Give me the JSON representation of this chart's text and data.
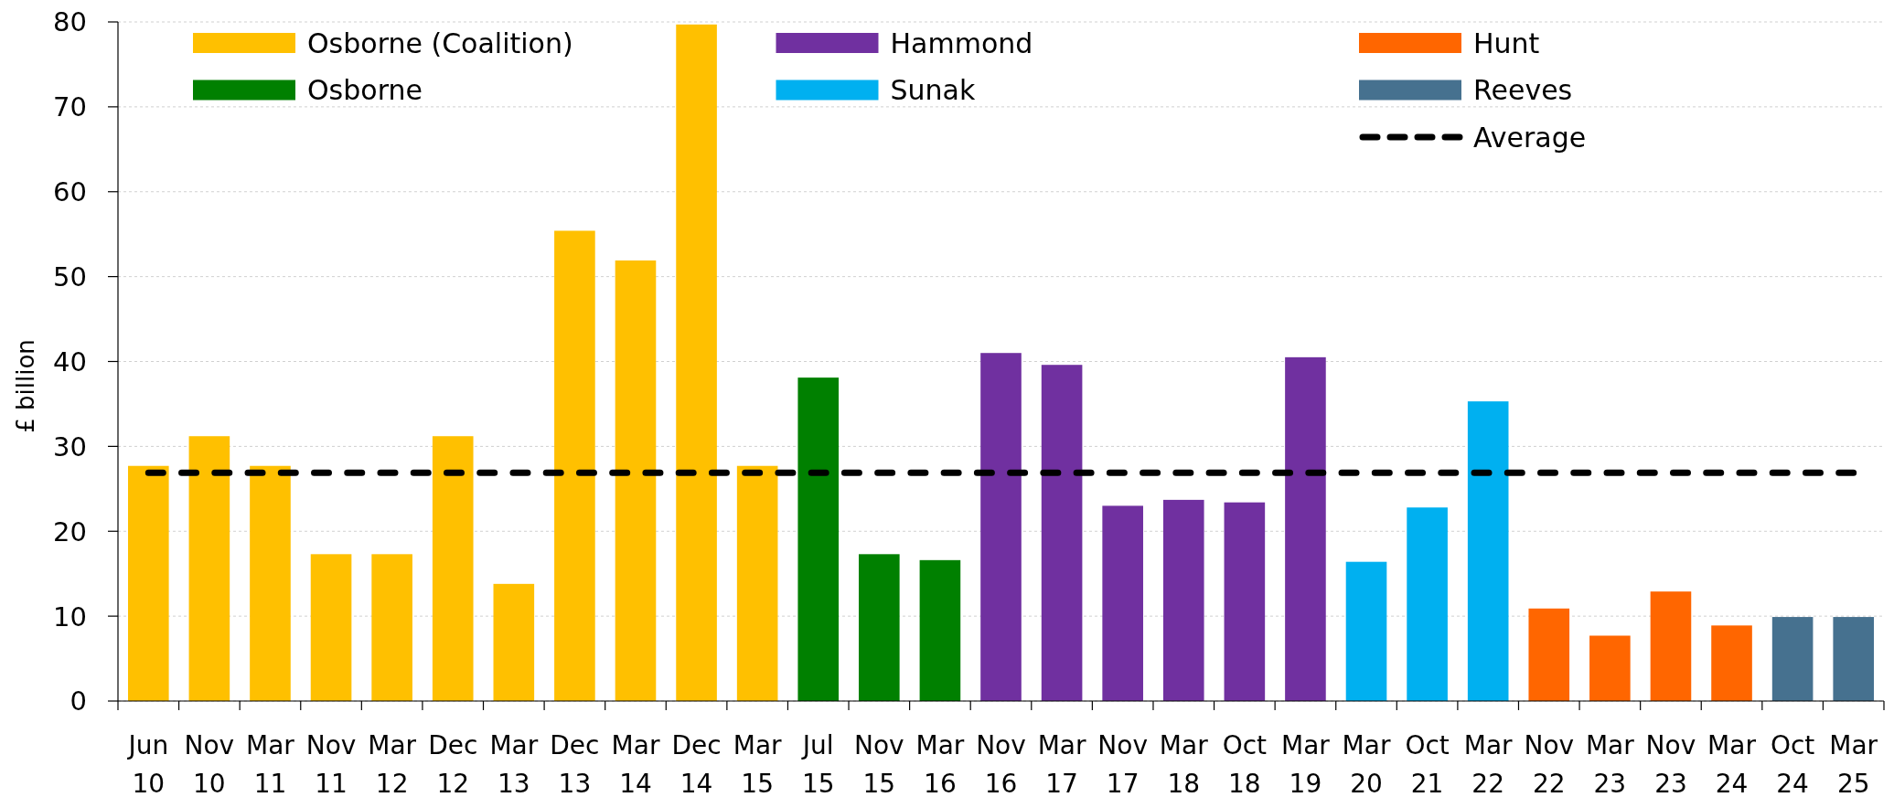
{
  "chart_data": {
    "type": "bar",
    "ylabel": "£ billion",
    "categories": [
      "Jun 10",
      "Nov 10",
      "Mar 11",
      "Nov 11",
      "Mar 12",
      "Dec 12",
      "Mar 13",
      "Dec 13",
      "Mar 14",
      "Dec 14",
      "Mar 15",
      "Jul 15",
      "Nov 15",
      "Mar 16",
      "Nov 16",
      "Mar 17",
      "Nov 17",
      "Mar 18",
      "Oct 18",
      "Mar 19",
      "Mar 20",
      "Oct 21",
      "Mar 22",
      "Nov 22",
      "Mar 23",
      "Nov 23",
      "Mar 24",
      "Oct 24",
      "Mar 25"
    ],
    "stacked": true,
    "series": [
      {
        "name": "Osborne (Coalition)",
        "color": "#ffc000",
        "values": [
          27.7,
          31.2,
          27.7,
          17.3,
          17.3,
          31.2,
          13.8,
          55.4,
          51.9,
          79.7,
          27.7,
          null,
          null,
          null,
          null,
          null,
          null,
          null,
          null,
          null,
          null,
          null,
          null,
          null,
          null,
          null,
          null,
          null,
          null
        ]
      },
      {
        "name": "Osborne",
        "color": "#008000",
        "values": [
          null,
          null,
          null,
          null,
          null,
          null,
          null,
          null,
          null,
          null,
          null,
          38.1,
          17.3,
          16.6,
          null,
          null,
          null,
          null,
          null,
          null,
          null,
          null,
          null,
          null,
          null,
          null,
          null,
          null,
          null
        ]
      },
      {
        "name": "Hammond",
        "color": "#7030a0",
        "values": [
          null,
          null,
          null,
          null,
          null,
          null,
          null,
          null,
          null,
          null,
          null,
          null,
          null,
          null,
          41.0,
          39.6,
          23.0,
          23.7,
          23.4,
          40.5,
          null,
          null,
          null,
          null,
          null,
          null,
          null,
          null,
          null
        ]
      },
      {
        "name": "Sunak",
        "color": "#00b0f0",
        "values": [
          null,
          null,
          null,
          null,
          null,
          null,
          null,
          null,
          null,
          null,
          null,
          null,
          null,
          null,
          null,
          null,
          null,
          null,
          null,
          null,
          16.4,
          22.8,
          35.3,
          null,
          null,
          null,
          null,
          null,
          null
        ]
      },
      {
        "name": "Hunt",
        "color": "#ff6600",
        "values": [
          null,
          null,
          null,
          null,
          null,
          null,
          null,
          null,
          null,
          null,
          null,
          null,
          null,
          null,
          null,
          null,
          null,
          null,
          null,
          null,
          null,
          null,
          null,
          10.9,
          7.7,
          12.9,
          8.9,
          null,
          null
        ]
      },
      {
        "name": "Reeves",
        "color": "#46718f",
        "values": [
          null,
          null,
          null,
          null,
          null,
          null,
          null,
          null,
          null,
          null,
          null,
          null,
          null,
          null,
          null,
          null,
          null,
          null,
          null,
          null,
          null,
          null,
          null,
          null,
          null,
          null,
          null,
          9.9,
          9.9
        ]
      },
      {
        "name": "Average",
        "type": "line",
        "color": "#000000",
        "line_style": "dashed",
        "values": [
          26.9,
          26.9,
          26.9,
          26.9,
          26.9,
          26.9,
          26.9,
          26.9,
          26.9,
          26.9,
          26.9,
          26.9,
          26.9,
          26.9,
          26.9,
          26.9,
          26.9,
          26.9,
          26.9,
          26.9,
          26.9,
          26.9,
          26.9,
          26.9,
          26.9,
          26.9,
          26.9,
          26.9,
          26.9
        ]
      }
    ],
    "ylim": [
      0,
      80
    ],
    "yticks": [
      0,
      10,
      20,
      30,
      40,
      50,
      60,
      70,
      80
    ],
    "grid": "y",
    "legend": "top"
  }
}
